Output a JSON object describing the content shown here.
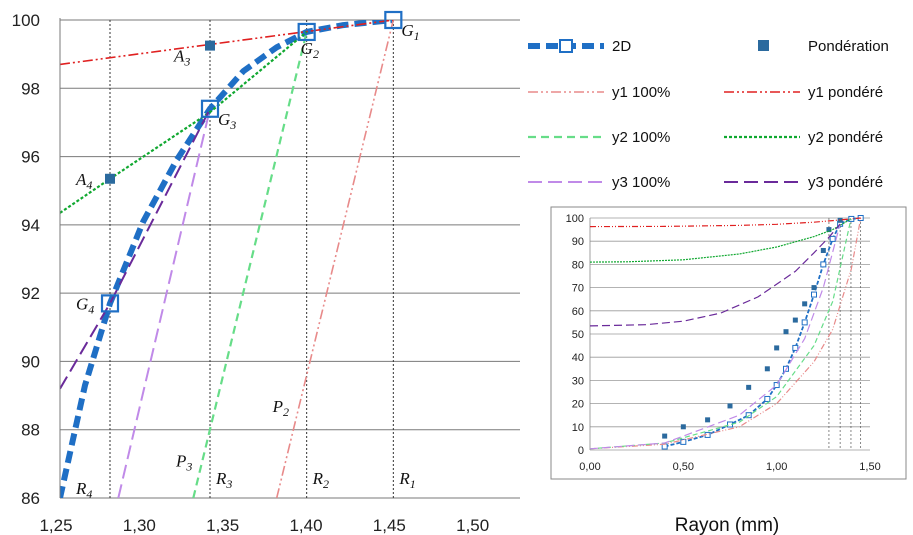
{
  "chart_data": [
    {
      "type": "line",
      "xlabel": "Rayon (mm)",
      "ylabel": "",
      "xlim": [
        1.25,
        1.55
      ],
      "ylim": [
        86,
        100
      ],
      "x_ticks": [
        "1,25",
        "1,30",
        "1,35",
        "1,40",
        "1,45",
        "1,50"
      ],
      "y_ticks": [
        "86",
        "88",
        "90",
        "92",
        "94",
        "96",
        "98",
        "100"
      ],
      "grid": "horizontal",
      "legend_position": "top-right",
      "series": [
        {
          "name": "2D",
          "style": "thick-dashed-with-square-markers",
          "color": "#1f6fc5",
          "x": [
            1.25,
            1.265,
            1.28,
            1.3,
            1.32,
            1.34,
            1.36,
            1.38,
            1.398,
            1.42,
            1.45
          ],
          "y": [
            86.0,
            89.3,
            91.7,
            94.1,
            95.9,
            97.4,
            98.5,
            99.2,
            99.65,
            99.85,
            100.0
          ],
          "markers_x": [
            1.28,
            1.34,
            1.398,
            1.45
          ],
          "markers_y": [
            91.7,
            97.4,
            99.65,
            100.0
          ]
        },
        {
          "name": "Pondération",
          "style": "square-markers",
          "color": "#2b6a9e",
          "x": [
            1.28,
            1.34
          ],
          "y": [
            95.35,
            99.25
          ]
        },
        {
          "name": "y1 100%",
          "style": "dash-dot-dot",
          "color": "#e88a8a",
          "x": [
            1.38,
            1.45
          ],
          "y": [
            86.0,
            100.0
          ]
        },
        {
          "name": "y1 pondéré",
          "style": "dash-dot-dot",
          "color": "#e02020",
          "x": [
            1.25,
            1.45
          ],
          "y": [
            98.7,
            100.0
          ]
        },
        {
          "name": "y2 100%",
          "style": "dashed",
          "color": "#66dd88",
          "x": [
            1.33,
            1.398
          ],
          "y": [
            86.0,
            99.65
          ]
        },
        {
          "name": "y2 pondéré",
          "style": "dotted",
          "color": "#10a830",
          "x": [
            1.25,
            1.28,
            1.34,
            1.398
          ],
          "y": [
            94.35,
            95.35,
            97.3,
            99.65
          ]
        },
        {
          "name": "y3 100%",
          "style": "long-dashed",
          "color": "#c08ae8",
          "x": [
            1.285,
            1.34
          ],
          "y": [
            86.0,
            97.4
          ]
        },
        {
          "name": "y3 pondéré",
          "style": "long-dashed",
          "color": "#6a2a9a",
          "x": [
            1.25,
            1.28,
            1.34
          ],
          "y": [
            89.2,
            91.7,
            97.4
          ]
        }
      ],
      "annotations": [
        {
          "base": "G",
          "sub": "1",
          "x": 1.45,
          "y": 100.0,
          "anchor": "right-below"
        },
        {
          "base": "G",
          "sub": "2",
          "x": 1.398,
          "y": 99.65,
          "anchor": "below"
        },
        {
          "base": "G",
          "sub": "3",
          "x": 1.34,
          "y": 97.4,
          "anchor": "right-below"
        },
        {
          "base": "G",
          "sub": "4",
          "x": 1.28,
          "y": 91.7,
          "anchor": "left"
        },
        {
          "base": "A",
          "sub": "3",
          "x": 1.34,
          "y": 99.25,
          "anchor": "left-below"
        },
        {
          "base": "A",
          "sub": "4",
          "x": 1.28,
          "y": 95.35,
          "anchor": "left"
        },
        {
          "base": "P",
          "sub": "2",
          "x": 1.398,
          "y": 88.7,
          "anchor": "left"
        },
        {
          "base": "P",
          "sub": "3",
          "x": 1.34,
          "y": 87.1,
          "anchor": "left"
        },
        {
          "base": "R",
          "sub": "1",
          "x": 1.45,
          "y": 86.3,
          "anchor": "right"
        },
        {
          "base": "R",
          "sub": "2",
          "x": 1.398,
          "y": 86.3,
          "anchor": "right"
        },
        {
          "base": "R",
          "sub": "3",
          "x": 1.34,
          "y": 86.3,
          "anchor": "right"
        },
        {
          "base": "R",
          "sub": "4",
          "x": 1.28,
          "y": 86.3,
          "anchor": "left"
        }
      ],
      "vertical_guides_x": [
        1.28,
        1.34,
        1.398,
        1.45
      ]
    },
    {
      "type": "line",
      "inset": true,
      "xlim": [
        0,
        1.5
      ],
      "ylim": [
        0,
        100
      ],
      "x_ticks": [
        "0,00",
        "0,50",
        "1,00",
        "1,50"
      ],
      "y_ticks": [
        "0",
        "10",
        "20",
        "30",
        "40",
        "50",
        "60",
        "70",
        "80",
        "90",
        "100"
      ],
      "grid": "horizontal",
      "series": [
        {
          "name": "2D",
          "x": [
            0.4,
            0.5,
            0.63,
            0.75,
            0.85,
            0.95,
            1.0,
            1.05,
            1.1,
            1.15,
            1.2,
            1.25,
            1.3,
            1.34,
            1.4,
            1.45
          ],
          "y": [
            1.5,
            3.5,
            6.5,
            11,
            15,
            22,
            28,
            35,
            44,
            55,
            67,
            80,
            91,
            97.5,
            99.6,
            100
          ]
        },
        {
          "name": "Pondération",
          "x": [
            0.4,
            0.5,
            0.63,
            0.75,
            0.85,
            0.95,
            1.0,
            1.05,
            1.1,
            1.15,
            1.2,
            1.25,
            1.28,
            1.34
          ],
          "y": [
            6,
            10,
            13,
            19,
            27,
            35,
            44,
            51,
            56,
            63,
            70,
            86,
            95,
            99
          ]
        },
        {
          "name": "y1 100%",
          "x": [
            0.0,
            0.4,
            0.8,
            1.0,
            1.2,
            1.3,
            1.4,
            1.45
          ],
          "y": [
            0.5,
            2.5,
            10,
            20,
            38,
            52,
            78,
            100
          ]
        },
        {
          "name": "y1 pondéré",
          "x": [
            0.0,
            0.4,
            0.8,
            1.0,
            1.2,
            1.3,
            1.4,
            1.45
          ],
          "y": [
            96.3,
            96.4,
            96.8,
            97.3,
            98.2,
            98.9,
            99.6,
            100
          ]
        },
        {
          "name": "y2 100%",
          "x": [
            0.0,
            0.4,
            0.8,
            1.0,
            1.2,
            1.3,
            1.398
          ],
          "y": [
            0.5,
            3,
            12,
            23,
            45,
            64,
            99.6
          ]
        },
        {
          "name": "y2 pondéré",
          "x": [
            0.0,
            0.2,
            0.5,
            0.8,
            1.0,
            1.2,
            1.3,
            1.398
          ],
          "y": [
            81,
            81.1,
            82,
            84.5,
            87.5,
            92,
            95,
            99.6
          ]
        },
        {
          "name": "y3 100%",
          "x": [
            0.0,
            0.4,
            0.8,
            1.0,
            1.15,
            1.25,
            1.34
          ],
          "y": [
            0.5,
            3,
            15,
            28,
            48,
            70,
            97.4
          ]
        },
        {
          "name": "y3 pondéré",
          "x": [
            0.0,
            0.3,
            0.5,
            0.7,
            0.9,
            1.1,
            1.2,
            1.28,
            1.34
          ],
          "y": [
            53.5,
            54.0,
            55.5,
            59,
            66,
            77,
            85,
            91.7,
            97.4
          ]
        }
      ]
    }
  ]
}
